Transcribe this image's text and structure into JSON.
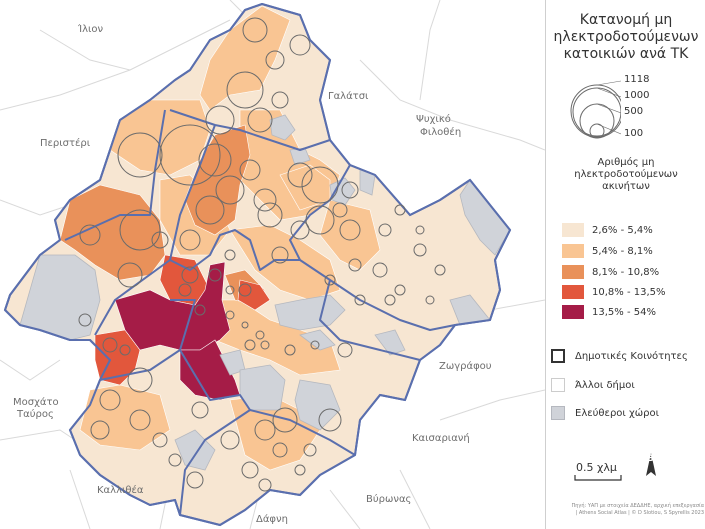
{
  "legend": {
    "title_lines": [
      "Κατανομή μη",
      "ηλεκτροδοτούμενων",
      "κατοικιών ανά ΤΚ"
    ],
    "size_values": [
      "1118",
      "1000",
      "500",
      "100"
    ],
    "choropleth_title_lines": [
      "Αριθμός μη",
      "ηλεκτροδοτούμενων",
      "ακινήτων"
    ],
    "classes": [
      {
        "label": "2,6% - 5,4%",
        "color": "#f7e6d2"
      },
      {
        "label": "5,4% - 8,1%",
        "color": "#f9c593"
      },
      {
        "label": "8,1% - 10,8%",
        "color": "#e9915a"
      },
      {
        "label": "10,8% - 13,5%",
        "color": "#e2573c"
      },
      {
        "label": "13,5% - 54%",
        "color": "#a51c47"
      }
    ],
    "other": [
      {
        "label": "Δημοτικές Κοινότητες",
        "kind": "community",
        "fill": "#ffffff",
        "stroke": "#333333"
      },
      {
        "label": "Άλλοι δήμοι",
        "kind": "other-municipality",
        "fill": "#ffffff",
        "stroke": "#cccccc"
      },
      {
        "label": "Ελεύθεροι χώροι",
        "kind": "open-space",
        "fill": "#d0d3d9",
        "stroke": "#b5b8bf"
      }
    ]
  },
  "scale": {
    "label": "0.5 χλμ"
  },
  "north": {
    "label": "Β"
  },
  "credit": [
    "Πηγή: ΥΑΠ με στοιχεία ΔΕΔΔΗΕ, αρχική επεξεργασία",
    "| Athens Social Atlas | © D Slotiou, S Spyrellis 2023"
  ],
  "places": {
    "ilion": "Ίλιον",
    "galatsi": "Γαλάτσι",
    "peristeri": "Περιστέρι",
    "psychiko": "Ψυχικό",
    "filothei": "Φιλοθέη",
    "zografou": "Ζωγράφου",
    "moschato": "Μοσχάτο",
    "tavros": "Ταύρος",
    "kaisariani": "Καισαριανή",
    "kallithea": "Καλλιθέα",
    "vyronas": "Βύρωνας",
    "dafni": "Δάφνη"
  },
  "colors": {
    "community_border": "#5a6fae",
    "open_space": "#d0d3d9",
    "municipality_line": "#d4d4d4",
    "circle_stroke": "#6b6b6b"
  }
}
